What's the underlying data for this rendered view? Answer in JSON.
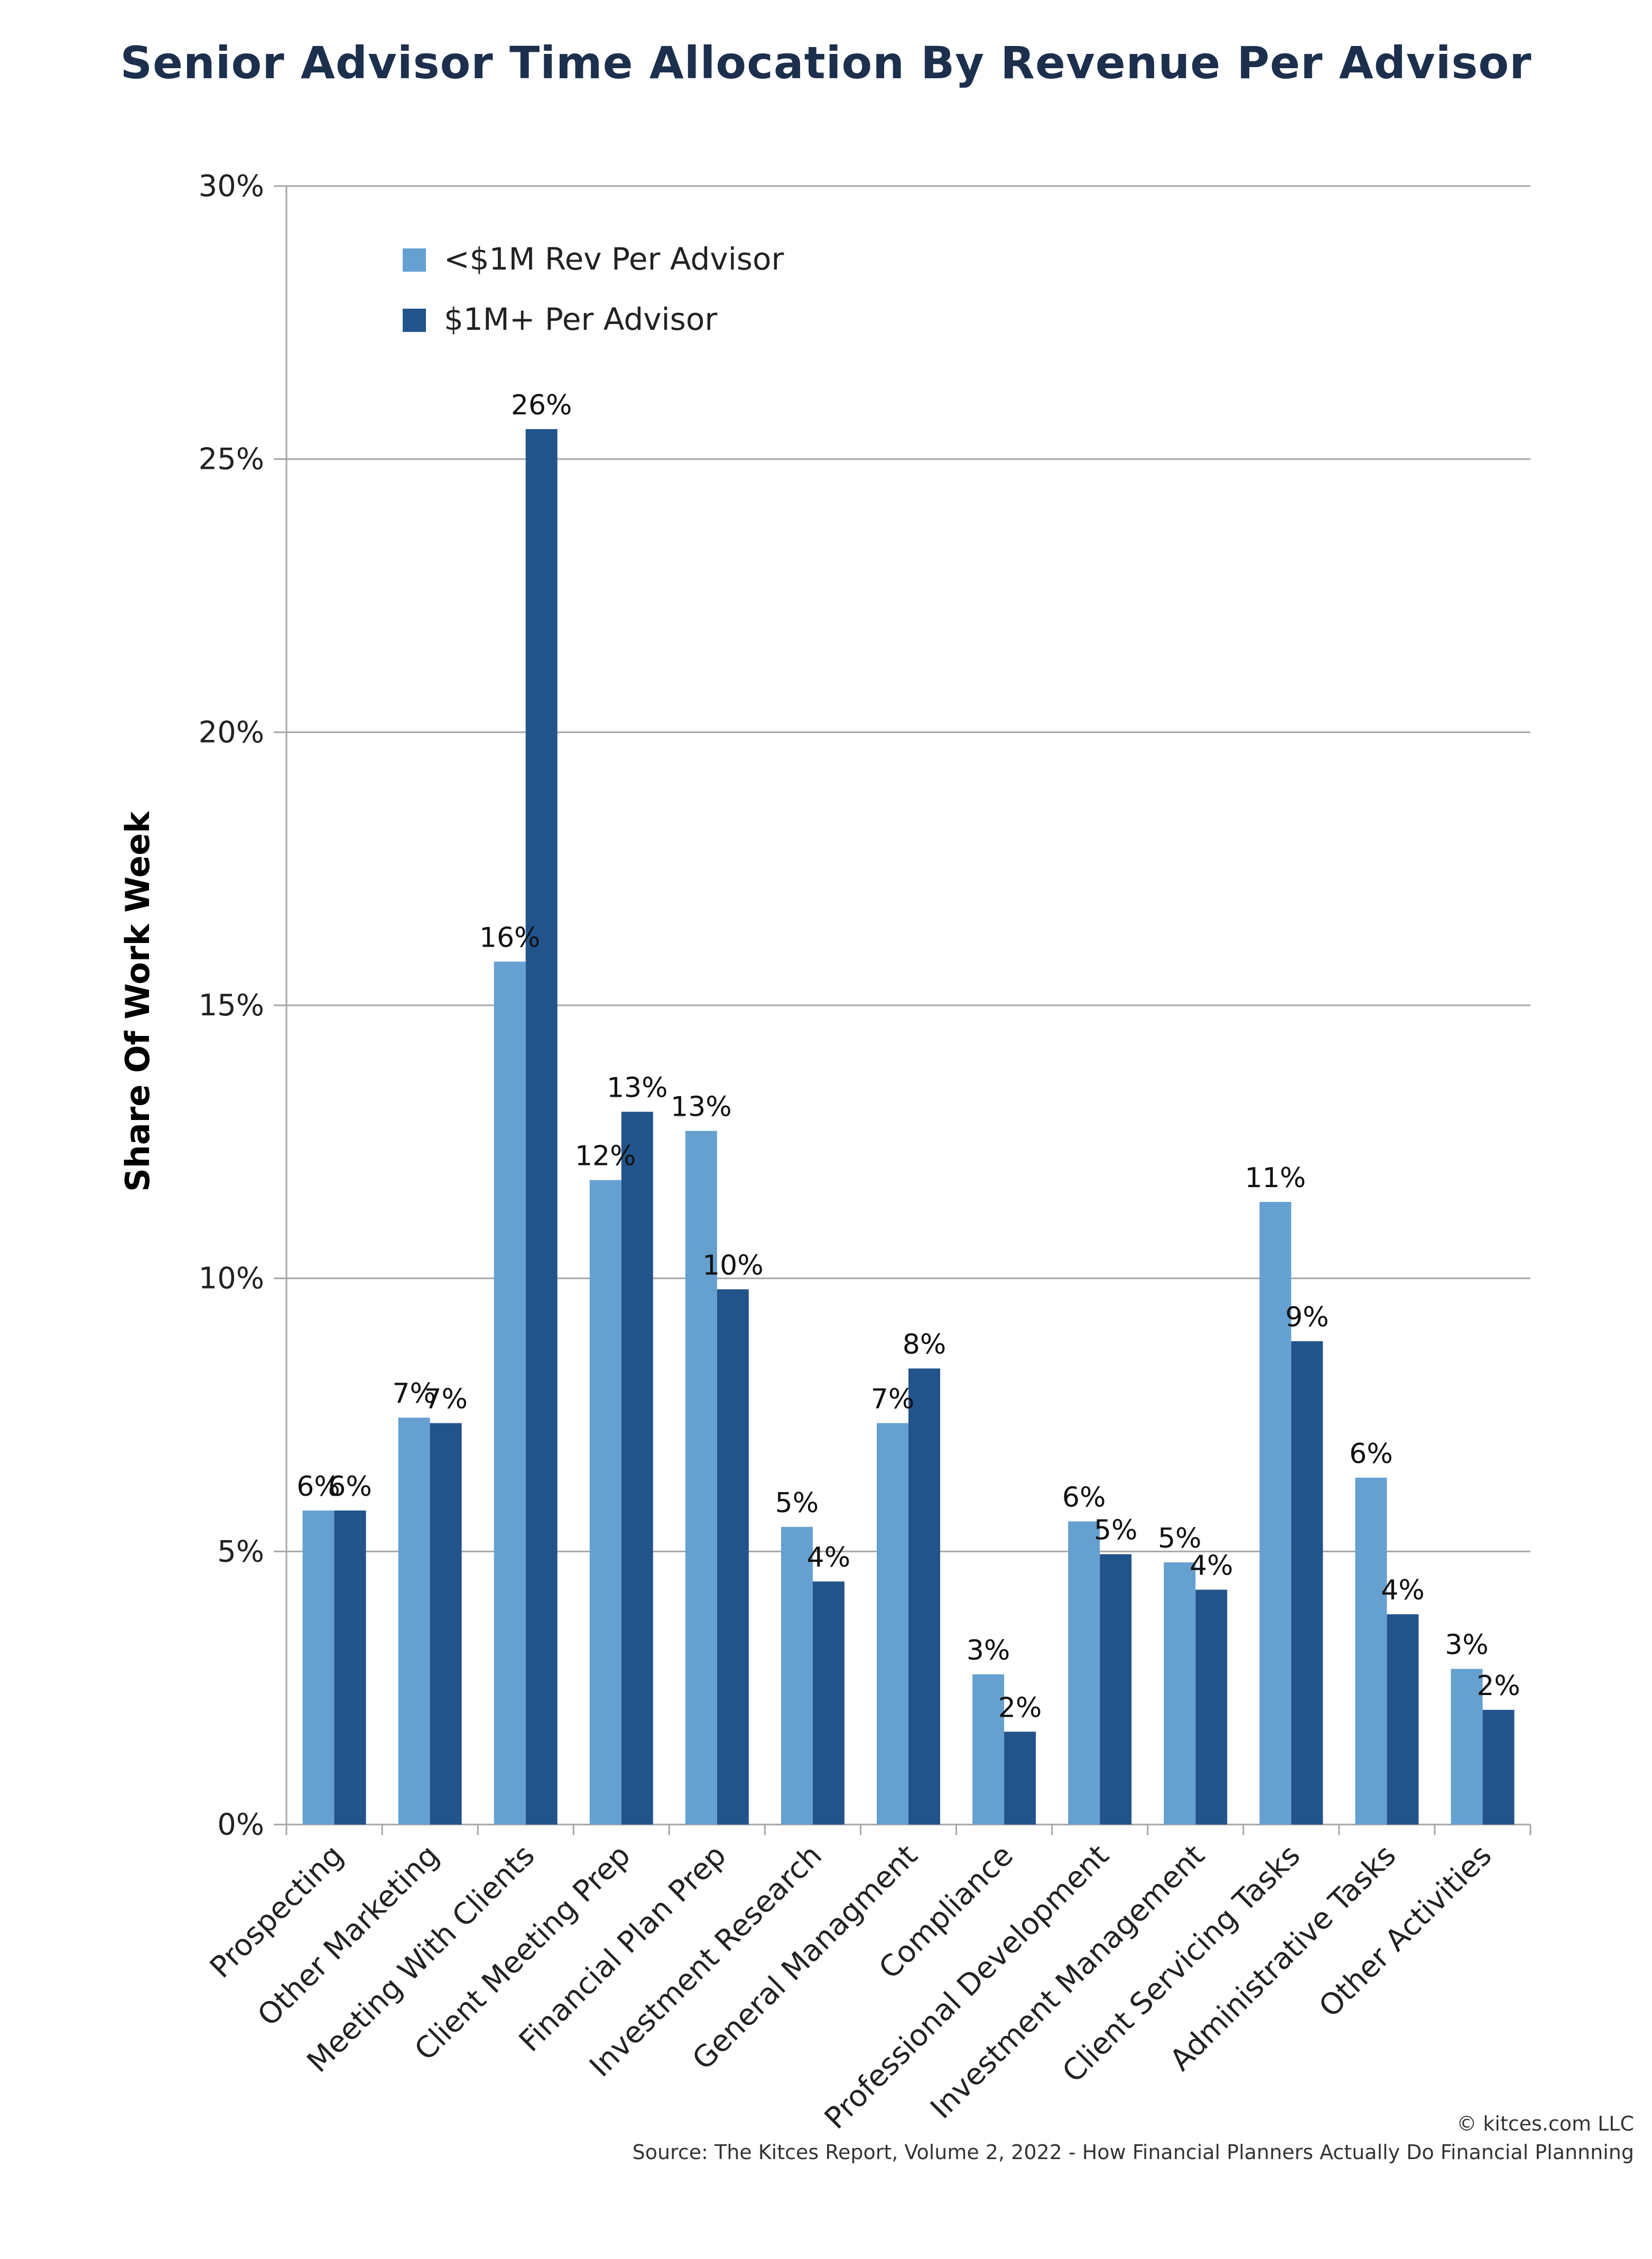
{
  "chart_data": {
    "type": "bar",
    "title": "Senior Advisor Time Allocation By Revenue Per Advisor",
    "ylabel": "Share Of Work Week",
    "xlabel": "",
    "ylim": [
      0,
      30
    ],
    "yticks": [
      "0%",
      "5%",
      "10%",
      "15%",
      "20%",
      "25%",
      "30%"
    ],
    "grid": "horizontal",
    "legend_position": "top-left",
    "categories": [
      "Prospecting",
      "Other Marketing",
      "Meeting With Clients",
      "Client Meeting Prep",
      "Financial Plan Prep",
      "Investment Research",
      "General Managment",
      "Compliance",
      "Professional Development",
      "Investment Management",
      "Client Servicing Tasks",
      "Administrative Tasks",
      "Other Activities"
    ],
    "series": [
      {
        "name": "<$1M Rev Per Advisor",
        "color": "#65a0d1",
        "values": [
          5.75,
          7.45,
          15.8,
          11.8,
          12.7,
          5.45,
          7.35,
          2.75,
          5.55,
          4.8,
          11.4,
          6.35,
          2.85
        ],
        "labels": [
          "6%",
          "7%",
          "16%",
          "12%",
          "13%",
          "5%",
          "7%",
          "3%",
          "6%",
          "5%",
          "11%",
          "6%",
          "3%"
        ]
      },
      {
        "name": "$1M+ Per Advisor",
        "color": "#22548b",
        "values": [
          5.75,
          7.35,
          25.55,
          13.05,
          9.8,
          4.45,
          8.35,
          1.7,
          4.95,
          4.3,
          8.85,
          3.85,
          2.1
        ],
        "labels": [
          "6%",
          "7%",
          "26%",
          "13%",
          "10%",
          "4%",
          "8%",
          "2%",
          "5%",
          "4%",
          "9%",
          "4%",
          "2%"
        ]
      }
    ]
  },
  "footer": {
    "copyright": "© kitces.com LLC",
    "source": "Source: The Kitces Report, Volume 2, 2022 - How Financial Planners Actually Do Financial Plannning"
  }
}
